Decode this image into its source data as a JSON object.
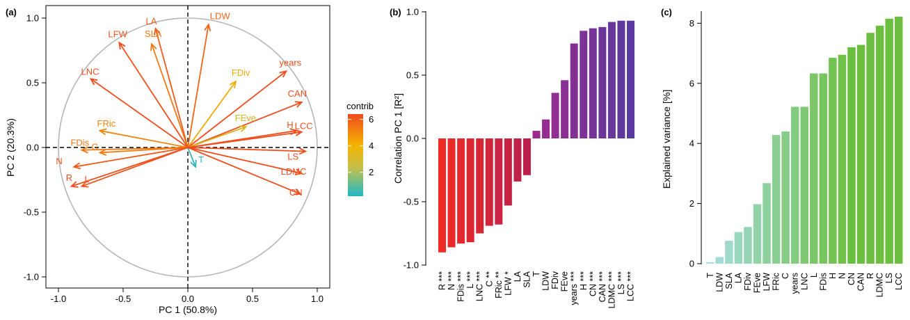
{
  "chart_data": [
    {
      "type": "scatter",
      "panel_label": "(a)",
      "xlabel": "PC 1 (50.8%)",
      "ylabel": "PC 2 (20.3%)",
      "xlim": [
        -1.0,
        1.0
      ],
      "ylim": [
        -1.0,
        1.0
      ],
      "xticks": [
        "-1.0",
        "-0.5",
        "0.0",
        "0.5",
        "1.0"
      ],
      "yticks": [
        "1.0",
        "0.5",
        "0.0",
        "-0.5",
        "-1.0"
      ],
      "legend_title": "contrib",
      "legend_ticks": [
        "6",
        "4",
        "2"
      ],
      "legend_range": [
        0.2,
        6.4
      ],
      "legend_colors": [
        "#2ab3c0",
        "#f4b400",
        "#f04a1e"
      ],
      "vectors": [
        {
          "name": "LDW",
          "x": 0.16,
          "y": 0.95,
          "contrib": 5.6
        },
        {
          "name": "LA",
          "x": -0.25,
          "y": 0.92,
          "contrib": 5.9
        },
        {
          "name": "SLA",
          "x": -0.28,
          "y": 0.8,
          "contrib": 4.9
        },
        {
          "name": "LFW",
          "x": -0.53,
          "y": 0.81,
          "contrib": 6.2
        },
        {
          "name": "LNC",
          "x": -0.75,
          "y": 0.53,
          "contrib": 6.3
        },
        {
          "name": "FDiv",
          "x": 0.37,
          "y": 0.51,
          "contrib": 3.4
        },
        {
          "name": "years",
          "x": 0.76,
          "y": 0.59,
          "contrib": 6.3
        },
        {
          "name": "CAN",
          "x": 0.88,
          "y": 0.35,
          "contrib": 6.3
        },
        {
          "name": "FRic",
          "x": -0.68,
          "y": 0.13,
          "contrib": 4.5
        },
        {
          "name": "FEve",
          "x": 0.45,
          "y": 0.16,
          "contrib": 2.6
        },
        {
          "name": "H",
          "x": 0.84,
          "y": 0.13,
          "contrib": 6.2
        },
        {
          "name": "LCC",
          "x": 0.88,
          "y": 0.12,
          "contrib": 6.3
        },
        {
          "name": "FDis",
          "x": -0.82,
          "y": -0.02,
          "contrib": 5.0
        },
        {
          "name": "C",
          "x": -0.68,
          "y": -0.04,
          "contrib": 4.8
        },
        {
          "name": "N",
          "x": -0.88,
          "y": -0.15,
          "contrib": 6.0
        },
        {
          "name": "T",
          "x": 0.06,
          "y": -0.15,
          "contrib": 0.3
        },
        {
          "name": "LS",
          "x": 0.91,
          "y": -0.03,
          "contrib": 6.3
        },
        {
          "name": "LDMC",
          "x": 0.88,
          "y": -0.2,
          "contrib": 6.3
        },
        {
          "name": "R",
          "x": -0.9,
          "y": -0.3,
          "contrib": 6.3
        },
        {
          "name": "L",
          "x": -0.82,
          "y": -0.3,
          "contrib": 6.1
        },
        {
          "name": "CN",
          "x": 0.87,
          "y": -0.36,
          "contrib": 6.3
        }
      ]
    },
    {
      "type": "bar",
      "panel_label": "(b)",
      "ylabel": "Correlation PC 1 [R²]",
      "ylim": [
        -1.0,
        1.0
      ],
      "yticks": [
        "1.0",
        "0.5",
        "0.0",
        "-0.5",
        "-1.0"
      ],
      "colors": [
        "#ee2b24",
        "#5a3a9e"
      ],
      "categories": [
        "R ***",
        "N ***",
        "FDis ***",
        "L ***",
        "LNC ***",
        "C **",
        "FRic **",
        "LFW *",
        "LA",
        "SLA",
        "T",
        "LDW",
        "FDiv",
        "FEve",
        "years ***",
        "H ***",
        "CN ***",
        "CAN ***",
        "LDMC ***",
        "LS ***",
        "LCC ***"
      ],
      "values": [
        -0.9,
        -0.86,
        -0.83,
        -0.82,
        -0.75,
        -0.69,
        -0.68,
        -0.53,
        -0.34,
        -0.29,
        0.06,
        0.15,
        0.36,
        0.46,
        0.75,
        0.85,
        0.87,
        0.88,
        0.92,
        0.93,
        0.93
      ]
    },
    {
      "type": "bar",
      "panel_label": "(c)",
      "ylabel": "Explained variance [%]",
      "ylim": [
        0,
        8.3
      ],
      "yticks": [
        "8",
        "6",
        "4",
        "2",
        "0"
      ],
      "colors": [
        "#a6dde0",
        "#6cbf3e"
      ],
      "categories": [
        "T",
        "LDW",
        "SLA",
        "LA",
        "FDiv",
        "FEve",
        "LFW",
        "FRic",
        "C",
        "years",
        "LNC",
        "L",
        "FDis",
        "H",
        "N",
        "CN",
        "CAN",
        "R",
        "LDMC",
        "LS",
        "LCC"
      ],
      "values": [
        0.05,
        0.22,
        0.76,
        1.05,
        1.22,
        1.98,
        2.68,
        4.28,
        4.4,
        5.22,
        5.22,
        6.33,
        6.33,
        6.85,
        6.95,
        7.2,
        7.28,
        7.68,
        7.92,
        8.15,
        8.22
      ]
    }
  ]
}
